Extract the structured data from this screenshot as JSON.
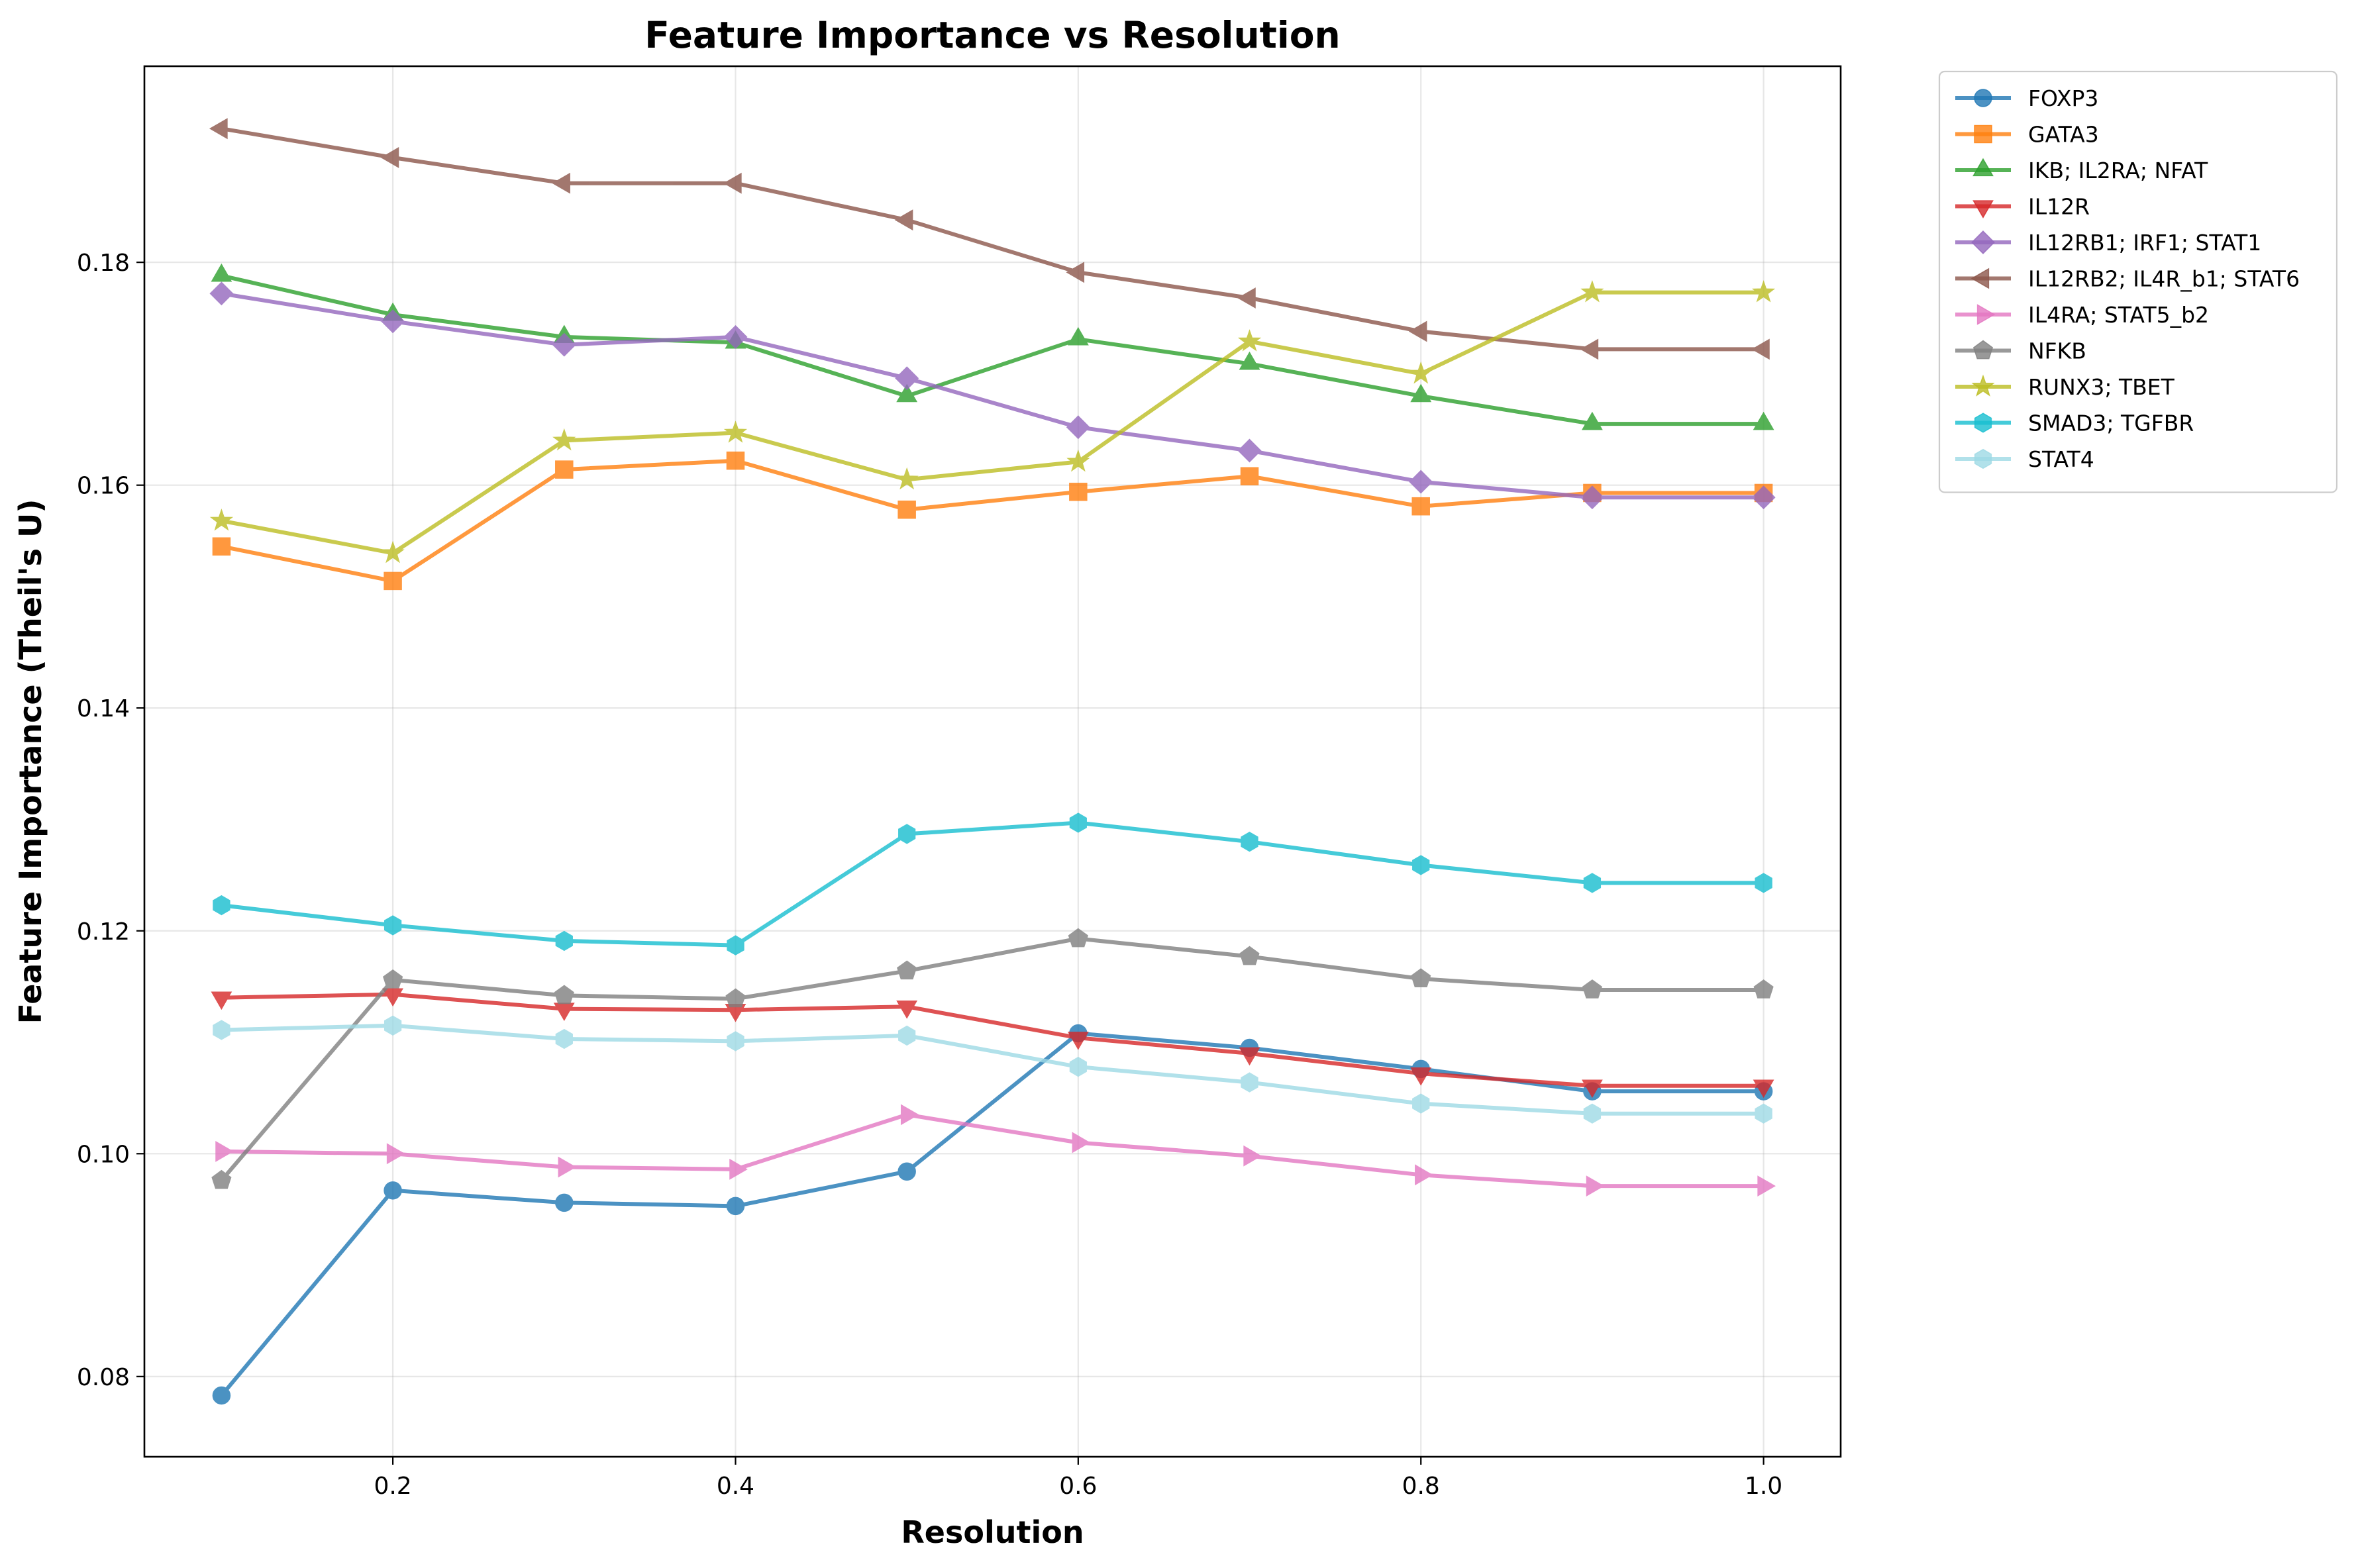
{
  "chart_data": {
    "type": "line",
    "title": "Feature Importance vs Resolution",
    "xlabel": "Resolution",
    "ylabel": "Feature Importance (Theil's U)",
    "xlim": [
      0.055,
      1.045
    ],
    "ylim": [
      0.0728,
      0.1976
    ],
    "xticks": [
      0.2,
      0.4,
      0.6,
      0.8,
      1.0
    ],
    "xtick_labels": [
      "0.2",
      "0.4",
      "0.6",
      "0.8",
      "1.0"
    ],
    "yticks": [
      0.08,
      0.1,
      0.12,
      0.14,
      0.16,
      0.18
    ],
    "ytick_labels": [
      "0.08",
      "0.10",
      "0.12",
      "0.14",
      "0.16",
      "0.18"
    ],
    "grid": true,
    "legend_position": "outside-top-right",
    "x": [
      0.1,
      0.2,
      0.3,
      0.4,
      0.5,
      0.6,
      0.7,
      0.8,
      0.9,
      1.0
    ],
    "series": [
      {
        "name": "FOXP3",
        "color": "#1f77b4",
        "marker": "circle",
        "values": [
          0.0783,
          0.0967,
          0.0956,
          0.0953,
          0.0984,
          0.1108,
          0.1095,
          0.1076,
          0.1056,
          0.1056
        ]
      },
      {
        "name": "GATA3",
        "color": "#ff7f0e",
        "marker": "square",
        "values": [
          0.1545,
          0.1514,
          0.1614,
          0.1622,
          0.1578,
          0.1594,
          0.1608,
          0.1581,
          0.1593,
          0.1593
        ]
      },
      {
        "name": "IKB; IL2RA; NFAT",
        "color": "#2ca02c",
        "marker": "triangle-up",
        "values": [
          0.1788,
          0.1753,
          0.1733,
          0.1728,
          0.168,
          0.1731,
          0.1709,
          0.168,
          0.1655,
          0.1655
        ]
      },
      {
        "name": "IL12R",
        "color": "#d62728",
        "marker": "triangle-down",
        "values": [
          0.114,
          0.1143,
          0.113,
          0.1129,
          0.1132,
          0.1104,
          0.109,
          0.1072,
          0.1061,
          0.1061
        ]
      },
      {
        "name": "IL12RB1; IRF1; STAT1",
        "color": "#9467bd",
        "marker": "diamond",
        "values": [
          0.1772,
          0.1747,
          0.1726,
          0.1733,
          0.1696,
          0.1652,
          0.1631,
          0.1603,
          0.1589,
          0.1589
        ]
      },
      {
        "name": "IL12RB2; IL4R_b1; STAT6",
        "color": "#8c564b",
        "marker": "triangle-left",
        "values": [
          0.192,
          0.1894,
          0.1871,
          0.1871,
          0.1838,
          0.1791,
          0.1768,
          0.1738,
          0.1722,
          0.1722
        ]
      },
      {
        "name": "IL4RA; STAT5_b2",
        "color": "#e377c2",
        "marker": "triangle-right",
        "values": [
          0.1002,
          0.1,
          0.0988,
          0.0986,
          0.1035,
          0.101,
          0.0998,
          0.0981,
          0.0971,
          0.0971
        ]
      },
      {
        "name": "NFKB",
        "color": "#7f7f7f",
        "marker": "pentagon",
        "values": [
          0.0976,
          0.1156,
          0.1142,
          0.1139,
          0.1164,
          0.1193,
          0.1177,
          0.1157,
          0.1147,
          0.1147
        ]
      },
      {
        "name": "RUNX3; TBET",
        "color": "#bcbd22",
        "marker": "star",
        "values": [
          0.1568,
          0.1539,
          0.164,
          0.1647,
          0.1605,
          0.1621,
          0.1729,
          0.17,
          0.1773,
          0.1773
        ]
      },
      {
        "name": "SMAD3; TGFBR",
        "color": "#17becf",
        "marker": "hexagon",
        "values": [
          0.1223,
          0.1205,
          0.1191,
          0.1187,
          0.1287,
          0.1297,
          0.128,
          0.1259,
          0.1243,
          0.1243
        ]
      },
      {
        "name": "STAT4",
        "color": "#9edae5",
        "marker": "hexagon",
        "values": [
          0.1111,
          0.1115,
          0.1103,
          0.1101,
          0.1106,
          0.1078,
          0.1064,
          0.1045,
          0.1036,
          0.1036
        ]
      }
    ]
  }
}
